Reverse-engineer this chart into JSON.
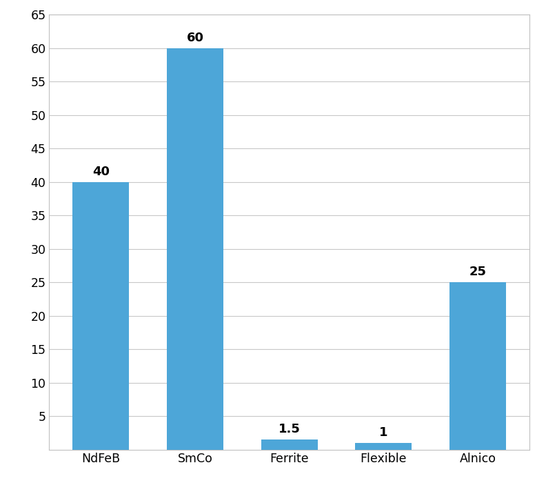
{
  "categories": [
    "NdFeB",
    "SmCo",
    "Ferrite",
    "Flexible",
    "Alnico"
  ],
  "values": [
    40,
    60,
    1.5,
    1,
    25
  ],
  "bar_color": "#4DA6D8",
  "background_color": "#ffffff",
  "grid_color": "#C8C8C8",
  "border_color": "#C0C0C0",
  "ylim": [
    0,
    65
  ],
  "yticks": [
    5,
    10,
    15,
    20,
    25,
    30,
    35,
    40,
    45,
    50,
    55,
    60,
    65
  ],
  "tick_fontsize": 12.5,
  "bar_label_fontsize": 13,
  "bar_width": 0.6,
  "label_format": {
    "NdFeB": "40",
    "SmCo": "60",
    "Ferrite": "1.5",
    "Flexible": "1",
    "Alnico": "25"
  },
  "figsize": [
    7.92,
    7.16
  ],
  "dpi": 100
}
